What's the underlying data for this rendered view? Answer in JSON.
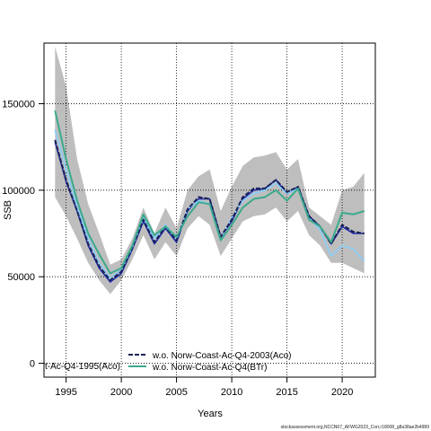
{
  "chart_data": {
    "type": "line",
    "xlabel": "Years",
    "ylabel": "SSB",
    "xlim": [
      1993,
      2023
    ],
    "ylim": [
      -8000,
      185000
    ],
    "xticks": [
      1995,
      2000,
      2005,
      2010,
      2015,
      2020
    ],
    "yticks": [
      0,
      50000,
      100000,
      150000
    ],
    "grid": true,
    "legend_placement": "bottom-center",
    "years": [
      1994,
      1995,
      1996,
      1997,
      1998,
      1999,
      2000,
      2001,
      2002,
      2003,
      2004,
      2005,
      2006,
      2007,
      2008,
      2009,
      2010,
      2011,
      2012,
      2013,
      2014,
      2015,
      2016,
      2017,
      2018,
      2019,
      2020,
      2021,
      2022
    ],
    "band": {
      "color": "#bebebe",
      "upper": [
        183000,
        160000,
        118000,
        92000,
        75000,
        57000,
        60000,
        72000,
        90000,
        75000,
        90000,
        78000,
        100000,
        108000,
        112000,
        88000,
        102000,
        114000,
        119000,
        120000,
        122000,
        112000,
        118000,
        90000,
        85000,
        80000,
        100000,
        102000,
        110000
      ],
      "lower": [
        96000,
        85000,
        72000,
        58000,
        48000,
        40000,
        48000,
        60000,
        74000,
        60000,
        70000,
        62000,
        78000,
        85000,
        80000,
        62000,
        72000,
        82000,
        85000,
        86000,
        90000,
        82000,
        88000,
        74000,
        68000,
        58000,
        58000,
        55000,
        52000
      ]
    },
    "series": [
      {
        "color": "#1f2aa8",
        "dash": "",
        "values": [
          128000,
          105000,
          88000,
          68000,
          55000,
          47000,
          52000,
          66000,
          82000,
          69000,
          78000,
          70000,
          88000,
          95000,
          95000,
          73000,
          82000,
          95000,
          100000,
          101000,
          106000,
          98000,
          102000,
          85000,
          79000,
          69000,
          79000,
          75000,
          75000
        ]
      },
      {
        "color": "#87cefa",
        "dash": "",
        "values": [
          135000,
          112000,
          90000,
          72000,
          58000,
          49000,
          54000,
          67000,
          84000,
          72000,
          80000,
          72000,
          89000,
          94000,
          92000,
          72000,
          84000,
          94000,
          98000,
          100000,
          104000,
          98000,
          101000,
          84000,
          77000,
          62000,
          68000,
          66000,
          59000
        ]
      },
      {
        "name": "w.o. Norw-Coast-Ac-Q4-2003(Aco)",
        "color": "#1a2257",
        "dash": "5,2",
        "values": [
          129000,
          106000,
          88000,
          69000,
          56000,
          48000,
          53000,
          67000,
          83000,
          70000,
          79000,
          71000,
          89000,
          96000,
          95000,
          73000,
          83000,
          96000,
          101000,
          101000,
          106000,
          99000,
          102000,
          85000,
          79000,
          69000,
          80000,
          76000,
          75000
        ]
      },
      {
        "name": "w.o. Norw-Coast-Ac-Q4(BTr)",
        "color": "#3aaa8c",
        "dash": "",
        "values": [
          146000,
          118000,
          94000,
          75000,
          63000,
          52000,
          55000,
          68000,
          86000,
          74000,
          79000,
          73000,
          85000,
          93000,
          92000,
          71000,
          80000,
          90000,
          95000,
          96000,
          100000,
          94000,
          101000,
          83000,
          79000,
          70000,
          87000,
          86000,
          88000
        ]
      }
    ],
    "legend_overflow_text": "t-Ac-Q4-1995(Aco)"
  },
  "footer_text": "stockassessment.org,NCCN67_AFWG2023_Corr,r18008_g8a38ae2b4989"
}
